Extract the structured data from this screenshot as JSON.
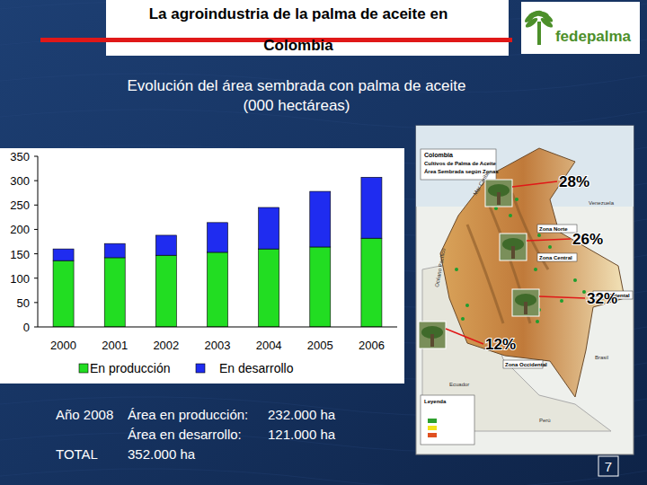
{
  "header": {
    "title_lines": [
      "La agroindustria de la palma de aceite en",
      "Colombia"
    ],
    "logo_text": "fedepalma"
  },
  "chart_data": {
    "type": "bar",
    "stacked": true,
    "title": "Evolución del área sembrada con palma de aceite",
    "subtitle": "(000 hectáreas)",
    "categories": [
      "2000",
      "2001",
      "2002",
      "2003",
      "2004",
      "2005",
      "2006"
    ],
    "series": [
      {
        "name": "En producción",
        "color": "#22dd22",
        "values": [
          136,
          142,
          147,
          153,
          160,
          164,
          182
        ]
      },
      {
        "name": "En desarrollo",
        "color": "#1f2cf0",
        "values": [
          24,
          29,
          41,
          61,
          85,
          114,
          125
        ]
      }
    ],
    "ylim": [
      0,
      350
    ],
    "yticks": [
      0,
      50,
      100,
      150,
      200,
      250,
      300,
      350
    ],
    "grid": false,
    "legend": "bottom"
  },
  "map": {
    "title_lines": [
      "Colombia",
      "Cultivos de Palma de Aceite",
      "Área Sembrada según Zonas"
    ],
    "zones": [
      {
        "label": "Zona Norte",
        "share_label": "28%"
      },
      {
        "label": "Zona Central",
        "share_label": "26%"
      },
      {
        "label": "Zona Oriental",
        "share_label": "32%"
      },
      {
        "label": "Zona Occidental",
        "share_label": "12%"
      }
    ],
    "places": [
      "Mar Caribe",
      "Océano Pacífico",
      "Venezuela",
      "Brasil",
      "Ecuador",
      "Perú"
    ],
    "legend_title": "Leyenda"
  },
  "summary": {
    "year_label": "Año 2008",
    "rows": [
      {
        "label": "Área en producción:",
        "value": "232.000 ha"
      },
      {
        "label": "Área en desarrollo:",
        "value": "121.000 ha"
      }
    ],
    "total_label": "TOTAL",
    "total_value": "352.000 ha"
  },
  "page_number": "7"
}
